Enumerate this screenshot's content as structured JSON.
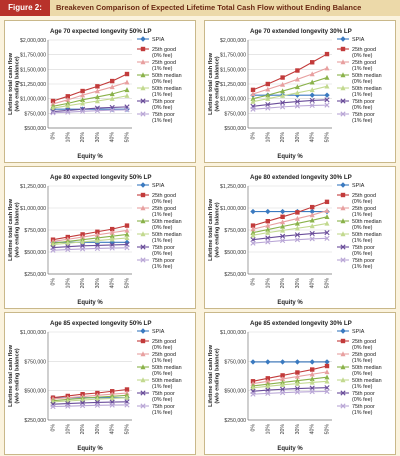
{
  "figure": {
    "label": "Figure 2:",
    "title": "Breakeven Comparison of Expected Lifetime Total Cash Flow without Ending Balance"
  },
  "colors": {
    "header_bg": "#ecd9a9",
    "label_bg": "#b8322b",
    "page_bg": "#fbf3de",
    "panel_bg": "#ffffff",
    "series": [
      "#3b7ac0",
      "#c23b3b",
      "#e8a0a0",
      "#8ab24a",
      "#c2d98f",
      "#6a4d9a",
      "#b9a6d6"
    ]
  },
  "chart_data": [
    {
      "type": "line",
      "title": "Age 70 expected longevity 50% LP",
      "xlabel": "Equity %",
      "ylabel": "Lifetime total cash flow (w/o ending balance)",
      "categories": [
        "0%",
        "10%",
        "20%",
        "30%",
        "40%",
        "50%"
      ],
      "ylim": [
        500000,
        2000000
      ],
      "yticks": [
        500000,
        750000,
        1000000,
        1250000,
        1500000,
        1750000,
        2000000
      ],
      "ytick_labels": [
        "$500,000",
        "$750,000",
        "$1,000,000",
        "$1,250,000",
        "$1,500,000",
        "$1,750,000",
        "$2,000,000"
      ],
      "series": [
        {
          "name": "SPIA",
          "values": [
            820000,
            820000,
            820000,
            820000,
            820000,
            820000
          ]
        },
        {
          "name": "25th good (0% fee)",
          "values": [
            960000,
            1040000,
            1130000,
            1210000,
            1300000,
            1420000
          ]
        },
        {
          "name": "25th good (1% fee)",
          "values": [
            910000,
            980000,
            1060000,
            1130000,
            1200000,
            1280000
          ]
        },
        {
          "name": "50th median (0% fee)",
          "values": [
            870000,
            920000,
            980000,
            1030000,
            1080000,
            1150000
          ]
        },
        {
          "name": "50th median (1% fee)",
          "values": [
            840000,
            880000,
            920000,
            960000,
            1000000,
            1050000
          ]
        },
        {
          "name": "75th poor (0% fee)",
          "values": [
            780000,
            800000,
            820000,
            840000,
            850000,
            860000
          ]
        },
        {
          "name": "75th poor (1% fee)",
          "values": [
            760000,
            770000,
            785000,
            795000,
            805000,
            810000
          ]
        }
      ]
    },
    {
      "type": "line",
      "title": "Age 70 extended longevity 30% LP",
      "xlabel": "Equity %",
      "ylabel": "Lifetime total cash flow (w/o ending balance)",
      "categories": [
        "0%",
        "10%",
        "20%",
        "30%",
        "40%",
        "50%"
      ],
      "ylim": [
        500000,
        2000000
      ],
      "yticks": [
        500000,
        750000,
        1000000,
        1250000,
        1500000,
        1750000,
        2000000
      ],
      "ytick_labels": [
        "$500,000",
        "$750,000",
        "$1,000,000",
        "$1,250,000",
        "$1,500,000",
        "$1,750,000",
        "$2,000,000"
      ],
      "series": [
        {
          "name": "SPIA",
          "values": [
            1060000,
            1060000,
            1060000,
            1060000,
            1060000,
            1060000
          ]
        },
        {
          "name": "25th good (0% fee)",
          "values": [
            1150000,
            1250000,
            1360000,
            1480000,
            1620000,
            1760000
          ]
        },
        {
          "name": "25th good (1% fee)",
          "values": [
            1080000,
            1160000,
            1240000,
            1330000,
            1420000,
            1520000
          ]
        },
        {
          "name": "50th median (0% fee)",
          "values": [
            1000000,
            1060000,
            1130000,
            1200000,
            1280000,
            1360000
          ]
        },
        {
          "name": "50th median (1% fee)",
          "values": [
            950000,
            1000000,
            1050000,
            1100000,
            1150000,
            1210000
          ]
        },
        {
          "name": "75th poor (0% fee)",
          "values": [
            870000,
            900000,
            930000,
            950000,
            970000,
            980000
          ]
        },
        {
          "name": "75th poor (1% fee)",
          "values": [
            820000,
            840000,
            860000,
            875000,
            885000,
            890000
          ]
        }
      ]
    },
    {
      "type": "line",
      "title": "Age 80 expected longevity 50% LP",
      "xlabel": "Equity %",
      "ylabel": "Lifetime total cash flow (w/o ending balance)",
      "categories": [
        "0%",
        "10%",
        "20%",
        "30%",
        "40%",
        "50%"
      ],
      "ylim": [
        250000,
        1250000
      ],
      "yticks": [
        250000,
        500000,
        750000,
        1000000,
        1250000
      ],
      "ytick_labels": [
        "$250,000",
        "$500,000",
        "$750,000",
        "$1,000,000",
        "$1,250,000"
      ],
      "series": [
        {
          "name": "SPIA",
          "values": [
            610000,
            610000,
            610000,
            610000,
            610000,
            610000
          ]
        },
        {
          "name": "25th good (0% fee)",
          "values": [
            640000,
            670000,
            700000,
            730000,
            760000,
            800000
          ]
        },
        {
          "name": "25th good (1% fee)",
          "values": [
            620000,
            645000,
            670000,
            695000,
            720000,
            745000
          ]
        },
        {
          "name": "50th median (0% fee)",
          "values": [
            600000,
            620000,
            640000,
            660000,
            680000,
            700000
          ]
        },
        {
          "name": "50th median (1% fee)",
          "values": [
            585000,
            600000,
            615000,
            630000,
            645000,
            660000
          ]
        },
        {
          "name": "75th poor (0% fee)",
          "values": [
            550000,
            560000,
            570000,
            575000,
            580000,
            585000
          ]
        },
        {
          "name": "75th poor (1% fee)",
          "values": [
            520000,
            528000,
            535000,
            540000,
            545000,
            548000
          ]
        }
      ]
    },
    {
      "type": "line",
      "title": "Age 80 extended longevity 30% LP",
      "xlabel": "Equity %",
      "ylabel": "Lifetime total cash flow (w/o ending balance)",
      "categories": [
        "0%",
        "10%",
        "20%",
        "30%",
        "40%",
        "50%"
      ],
      "ylim": [
        250000,
        1250000
      ],
      "yticks": [
        250000,
        500000,
        750000,
        1000000,
        1250000
      ],
      "ytick_labels": [
        "$250,000",
        "$500,000",
        "$750,000",
        "$1,000,000",
        "$1,250,000"
      ],
      "series": [
        {
          "name": "SPIA",
          "values": [
            960000,
            960000,
            960000,
            960000,
            960000,
            960000
          ]
        },
        {
          "name": "25th good (0% fee)",
          "values": [
            800000,
            850000,
            900000,
            950000,
            1010000,
            1070000
          ]
        },
        {
          "name": "25th good (1% fee)",
          "values": [
            760000,
            800000,
            840000,
            880000,
            920000,
            970000
          ]
        },
        {
          "name": "50th median (0% fee)",
          "values": [
            720000,
            755000,
            790000,
            825000,
            860000,
            900000
          ]
        },
        {
          "name": "50th median (1% fee)",
          "values": [
            690000,
            720000,
            745000,
            770000,
            795000,
            825000
          ]
        },
        {
          "name": "75th poor (0% fee)",
          "values": [
            640000,
            660000,
            680000,
            695000,
            710000,
            720000
          ]
        },
        {
          "name": "75th poor (1% fee)",
          "values": [
            600000,
            615000,
            630000,
            640000,
            650000,
            655000
          ]
        }
      ]
    },
    {
      "type": "line",
      "title": "Age 85 expected longevity 50% LP",
      "xlabel": "Equity %",
      "ylabel": "Lifetime total cash flow (w/o ending balance)",
      "categories": [
        "0%",
        "10%",
        "20%",
        "30%",
        "40%",
        "50%"
      ],
      "ylim": [
        250000,
        1000000
      ],
      "yticks": [
        250000,
        500000,
        750000,
        1000000
      ],
      "ytick_labels": [
        "$250,000",
        "$500,000",
        "$750,000",
        "$1,000,000"
      ],
      "series": [
        {
          "name": "SPIA",
          "values": [
            440000,
            440000,
            440000,
            440000,
            440000,
            440000
          ]
        },
        {
          "name": "25th good (0% fee)",
          "values": [
            440000,
            455000,
            470000,
            480000,
            495000,
            510000
          ]
        },
        {
          "name": "25th good (1% fee)",
          "values": [
            430000,
            440000,
            450000,
            460000,
            470000,
            480000
          ]
        },
        {
          "name": "50th median (0% fee)",
          "values": [
            415000,
            425000,
            435000,
            445000,
            452000,
            460000
          ]
        },
        {
          "name": "50th median (1% fee)",
          "values": [
            405000,
            412000,
            420000,
            428000,
            434000,
            440000
          ]
        },
        {
          "name": "75th poor (0% fee)",
          "values": [
            385000,
            390000,
            395000,
            400000,
            403000,
            405000
          ]
        },
        {
          "name": "75th poor (1% fee)",
          "values": [
            365000,
            368000,
            372000,
            375000,
            377000,
            378000
          ]
        }
      ]
    },
    {
      "type": "line",
      "title": "Age 85 extended longevity 30% LP",
      "xlabel": "Equity %",
      "ylabel": "Lifetime total cash flow (w/o ending balance)",
      "categories": [
        "0%",
        "10%",
        "20%",
        "30%",
        "40%",
        "50%"
      ],
      "ylim": [
        250000,
        1000000
      ],
      "yticks": [
        250000,
        500000,
        750000,
        1000000
      ],
      "ytick_labels": [
        "$250,000",
        "$500,000",
        "$750,000",
        "$1,000,000"
      ],
      "series": [
        {
          "name": "SPIA",
          "values": [
            745000,
            745000,
            745000,
            745000,
            745000,
            745000
          ]
        },
        {
          "name": "25th good (0% fee)",
          "values": [
            580000,
            605000,
            630000,
            655000,
            680000,
            710000
          ]
        },
        {
          "name": "25th good (1% fee)",
          "values": [
            560000,
            580000,
            600000,
            620000,
            640000,
            660000
          ]
        },
        {
          "name": "50th median (0% fee)",
          "values": [
            540000,
            555000,
            570000,
            585000,
            600000,
            615000
          ]
        },
        {
          "name": "50th median (1% fee)",
          "values": [
            525000,
            537000,
            550000,
            560000,
            570000,
            580000
          ]
        },
        {
          "name": "75th poor (0% fee)",
          "values": [
            495000,
            505000,
            512000,
            518000,
            522000,
            525000
          ]
        },
        {
          "name": "75th poor (1% fee)",
          "values": [
            470000,
            477000,
            483000,
            488000,
            491000,
            493000
          ]
        }
      ]
    }
  ]
}
